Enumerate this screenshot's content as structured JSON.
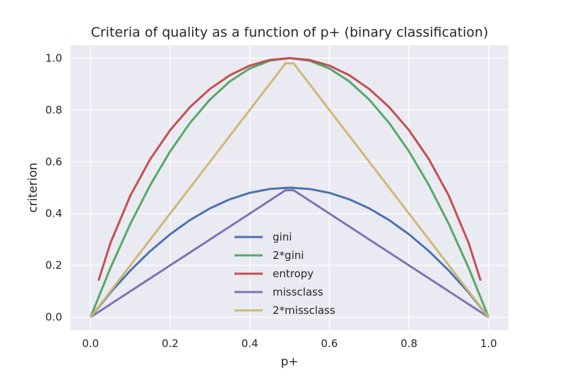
{
  "chart_data": {
    "type": "line",
    "title": "Criteria of quality as a function of p+ (binary classification)",
    "xlabel": "p+",
    "ylabel": "criterion",
    "xlim": [
      -0.05,
      1.05
    ],
    "ylim": [
      -0.05,
      1.05
    ],
    "xticks": [
      "0.0",
      "0.2",
      "0.4",
      "0.6",
      "0.8",
      "1.0"
    ],
    "yticks": [
      "0.0",
      "0.2",
      "0.4",
      "0.6",
      "0.8",
      "1.0"
    ],
    "grid": true,
    "legend_position": "lower-center",
    "background_color": "#eaeaf2",
    "series": [
      {
        "name": "gini",
        "color": "#4c72b0",
        "x": [
          0.0,
          0.05,
          0.1,
          0.15,
          0.2,
          0.25,
          0.3,
          0.35,
          0.4,
          0.45,
          0.5,
          0.55,
          0.6,
          0.65,
          0.7,
          0.75,
          0.8,
          0.85,
          0.9,
          0.95,
          1.0
        ],
        "y": [
          0.0,
          0.095,
          0.18,
          0.255,
          0.32,
          0.375,
          0.42,
          0.455,
          0.48,
          0.495,
          0.5,
          0.495,
          0.48,
          0.455,
          0.42,
          0.375,
          0.32,
          0.255,
          0.18,
          0.095,
          0.0
        ]
      },
      {
        "name": "2*gini",
        "color": "#55a868",
        "x": [
          0.0,
          0.05,
          0.1,
          0.15,
          0.2,
          0.25,
          0.3,
          0.35,
          0.4,
          0.45,
          0.5,
          0.55,
          0.6,
          0.65,
          0.7,
          0.75,
          0.8,
          0.85,
          0.9,
          0.95,
          1.0
        ],
        "y": [
          0.0,
          0.19,
          0.36,
          0.51,
          0.64,
          0.75,
          0.84,
          0.91,
          0.96,
          0.99,
          1.0,
          0.99,
          0.96,
          0.91,
          0.84,
          0.75,
          0.64,
          0.51,
          0.36,
          0.19,
          0.0
        ]
      },
      {
        "name": "entropy",
        "color": "#c44e52",
        "x": [
          0.02,
          0.05,
          0.1,
          0.15,
          0.2,
          0.25,
          0.3,
          0.35,
          0.4,
          0.45,
          0.5,
          0.55,
          0.6,
          0.65,
          0.7,
          0.75,
          0.8,
          0.85,
          0.9,
          0.95,
          0.98
        ],
        "y": [
          0.141,
          0.286,
          0.469,
          0.61,
          0.722,
          0.811,
          0.881,
          0.934,
          0.971,
          0.993,
          1.0,
          0.993,
          0.971,
          0.934,
          0.881,
          0.811,
          0.722,
          0.61,
          0.469,
          0.286,
          0.141
        ]
      },
      {
        "name": "missclass",
        "color": "#8172b2",
        "x": [
          0.0,
          0.49,
          0.51,
          1.0
        ],
        "y": [
          0.0,
          0.49,
          0.49,
          0.0
        ]
      },
      {
        "name": "2*missclass",
        "color": "#ccb974",
        "x": [
          0.0,
          0.49,
          0.51,
          1.0
        ],
        "y": [
          0.0,
          0.98,
          0.98,
          0.0
        ]
      }
    ]
  }
}
